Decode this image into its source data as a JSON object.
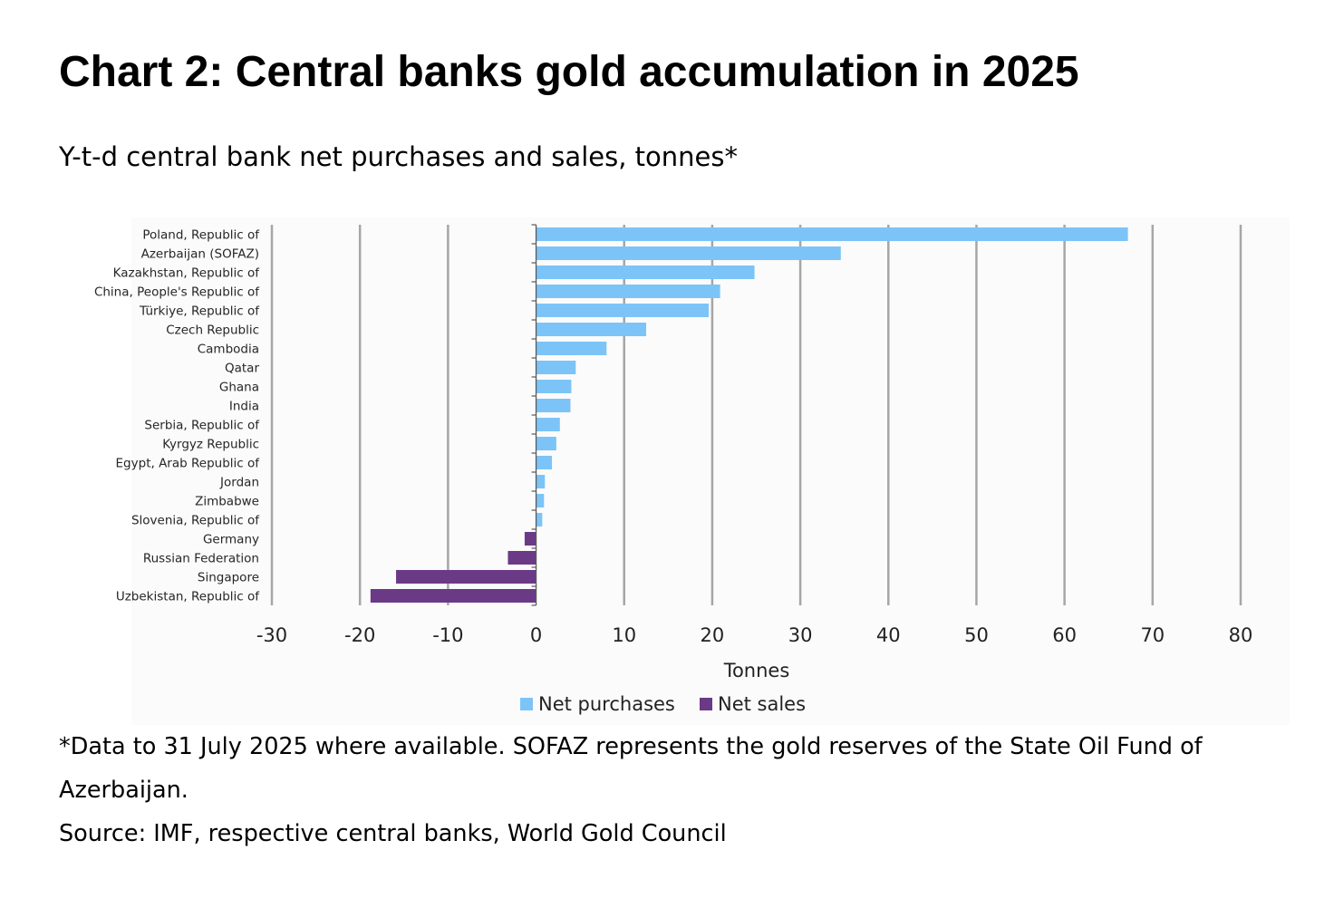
{
  "header": {
    "title": "Chart 2: Central banks gold accumulation in 2025",
    "subtitle": "Y-t-d central bank net purchases and sales, tonnes*"
  },
  "notes": {
    "footnote": "*Data to 31 July 2025 where available. SOFAZ represents the gold reserves of the State Oil Fund of Azerbaijan.",
    "source": "Source: IMF, respective central banks, World Gold Council"
  },
  "colors": {
    "net_purchases": "#7cc4f8",
    "net_sales": "#6b3a87",
    "gridline": "#a6a6a6"
  },
  "chart_data": {
    "type": "bar",
    "orientation": "horizontal",
    "title": "Chart 2: Central banks gold accumulation in 2025",
    "subtitle": "Y-t-d central bank net purchases and sales, tonnes*",
    "xlabel": "Tonnes",
    "ylabel": "",
    "xlim": [
      -30,
      80
    ],
    "xticks": [
      -30,
      -20,
      -10,
      0,
      10,
      20,
      30,
      40,
      50,
      60,
      70,
      80
    ],
    "grid": true,
    "legend_position": "bottom",
    "legend": [
      "Net purchases",
      "Net sales"
    ],
    "categories": [
      "Poland, Republic of",
      "Azerbaijan (SOFAZ)",
      "Kazakhstan, Republic of",
      "China, People's Republic of",
      "Türkiye, Republic of",
      "Czech Republic",
      "Cambodia",
      "Qatar",
      "Ghana",
      "India",
      "Serbia, Republic of",
      "Kyrgyz Republic",
      "Egypt, Arab Republic of",
      "Jordan",
      "Zimbabwe",
      "Slovenia, Republic of",
      "Germany",
      "Russian Federation",
      "Singapore",
      "Uzbekistan, Republic of"
    ],
    "values": [
      67.2,
      34.6,
      24.8,
      20.9,
      19.6,
      12.5,
      8.0,
      4.5,
      4.0,
      3.9,
      2.7,
      2.3,
      1.8,
      1.0,
      0.9,
      0.7,
      -1.3,
      -3.2,
      -15.9,
      -18.8
    ]
  }
}
